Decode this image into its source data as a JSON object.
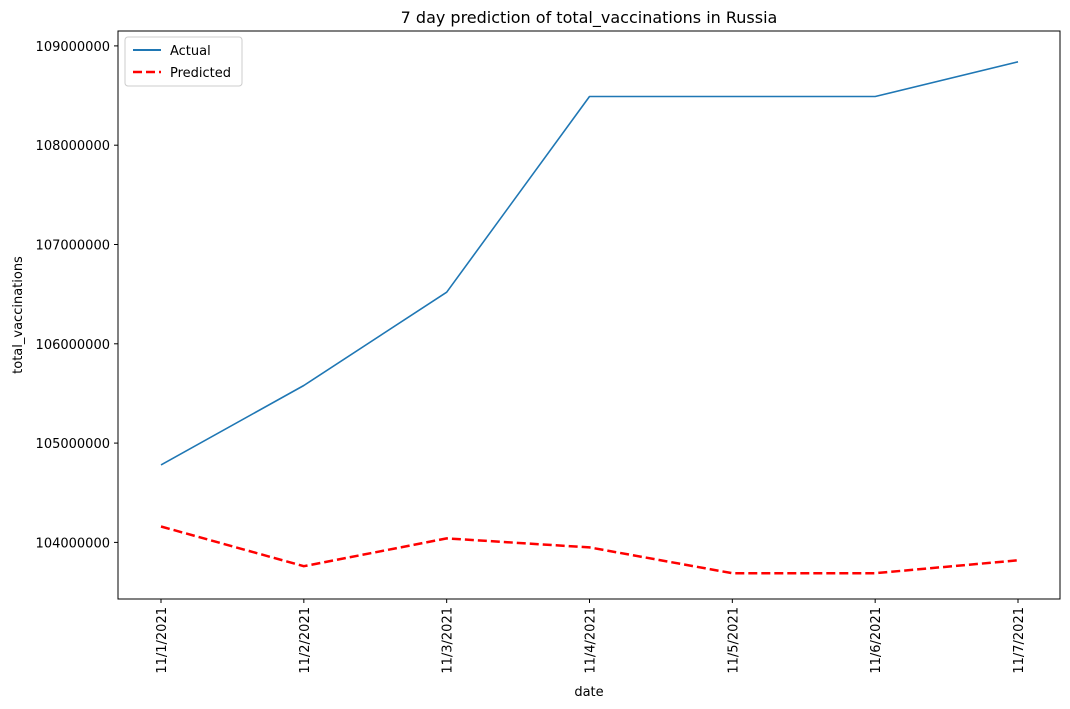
{
  "chart_data": {
    "type": "line",
    "title": "7 day prediction of total_vaccinations in Russia",
    "xlabel": "date",
    "ylabel": "total_vaccinations",
    "categories": [
      "11/1/2021",
      "11/2/2021",
      "11/3/2021",
      "11/4/2021",
      "11/5/2021",
      "11/6/2021",
      "11/7/2021"
    ],
    "ylim": [
      103430000,
      109150000
    ],
    "yticks": [
      {
        "value": 104000000,
        "label": "104000000"
      },
      {
        "value": 105000000,
        "label": "105000000"
      },
      {
        "value": 106000000,
        "label": "106000000"
      },
      {
        "value": 107000000,
        "label": "107000000"
      },
      {
        "value": 108000000,
        "label": "108000000"
      },
      {
        "value": 109000000,
        "label": "109000000"
      }
    ],
    "grid": false,
    "legend_position": "top-left",
    "series": [
      {
        "name": "Actual",
        "color": "#1f77b4",
        "style": "solid",
        "values": [
          104780000,
          105580000,
          106520000,
          108490000,
          108490000,
          108490000,
          108840000
        ]
      },
      {
        "name": "Predicted",
        "color": "#ff0000",
        "style": "dashed",
        "values": [
          104160000,
          103760000,
          104040000,
          103950000,
          103690000,
          103690000,
          103820000
        ]
      }
    ]
  }
}
